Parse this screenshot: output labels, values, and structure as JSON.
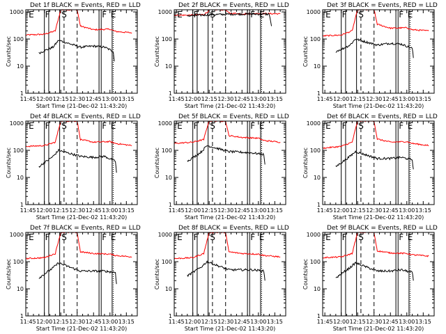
{
  "figure": {
    "common": {
      "xlabel": "Start Time (21-Dec-02 11:43:20)",
      "ylabel": "Counts/sec",
      "title_suffix": " BLACK = Events, RED = LLD",
      "x_tick_labels": [
        "11:45",
        "12:00",
        "12:15",
        "12:30",
        "12:45",
        "13:00",
        "13:15"
      ],
      "y_tick_labels": [
        "1",
        "10",
        "100",
        "1000"
      ],
      "markers": [
        {
          "label": "E",
          "time": "11:45"
        },
        {
          "label": "F",
          "time": "12:00"
        },
        {
          "label": "S",
          "time": "12:15"
        },
        {
          "label": "F",
          "time": "12:52"
        },
        {
          "label": "E",
          "time": "13:00"
        }
      ],
      "colors": {
        "events": "#000000",
        "lld": "#ff0000",
        "axes": "#000000"
      }
    }
  },
  "chart_data": [
    {
      "type": "line",
      "title": "Det 1f BLACK = Events, RED = LLD",
      "title_det": "Det 1f",
      "xlabel": "Start Time (21-Dec-02 11:43:20)",
      "ylabel": "Counts/sec",
      "xlim": [
        "11:43",
        "13:25"
      ],
      "ylim": [
        1,
        1200
      ],
      "yscale": "log",
      "series": [
        {
          "name": "LLD (red)",
          "times": [
            "11:43",
            "12:00",
            "12:10",
            "12:13",
            "12:15",
            "12:30",
            "12:33",
            "12:45",
            "13:00",
            "13:05",
            "13:20"
          ],
          "values": [
            140,
            150,
            200,
            600,
            1200,
            1200,
            300,
            220,
            230,
            190,
            170
          ]
        },
        {
          "name": "Events (black)",
          "times": [
            "11:55",
            "12:02",
            "12:08",
            "12:13",
            "12:33",
            "12:45",
            "12:55",
            "13:03",
            "13:04"
          ],
          "values": [
            30,
            40,
            50,
            90,
            50,
            55,
            50,
            35,
            15
          ]
        }
      ]
    },
    {
      "type": "line",
      "title": "Det 2f BLACK = Events, RED = LLD",
      "title_det": "Det 2f",
      "xlabel": "Start Time (21-Dec-02 11:43:20)",
      "ylabel": "Counts/sec",
      "xlim": [
        "11:43",
        "13:25"
      ],
      "ylim": [
        1,
        1200
      ],
      "yscale": "log",
      "series": [
        {
          "name": "LLD (red)",
          "times": [
            "11:43",
            "12:00",
            "12:10",
            "12:13",
            "12:15",
            "12:30",
            "12:33",
            "12:45",
            "13:00",
            "13:20"
          ],
          "values": [
            750,
            760,
            800,
            950,
            1200,
            1200,
            900,
            850,
            870,
            850
          ]
        },
        {
          "name": "Events (black)",
          "times": [
            "11:55",
            "12:02",
            "12:08",
            "12:13",
            "12:33",
            "12:45",
            "12:55",
            "13:10",
            "13:12"
          ],
          "values": [
            720,
            740,
            760,
            780,
            820,
            830,
            840,
            820,
            300
          ]
        }
      ]
    },
    {
      "type": "line",
      "title": "Det 3f BLACK = Events, RED = LLD",
      "title_det": "Det 3f",
      "xlabel": "Start Time (21-Dec-02 11:43:20)",
      "ylabel": "Counts/sec",
      "xlim": [
        "11:43",
        "13:25"
      ],
      "ylim": [
        1,
        1200
      ],
      "yscale": "log",
      "series": [
        {
          "name": "LLD (red)",
          "times": [
            "11:43",
            "12:00",
            "12:10",
            "12:13",
            "12:15",
            "12:30",
            "12:33",
            "12:45",
            "13:00",
            "13:05",
            "13:20"
          ],
          "values": [
            130,
            140,
            200,
            600,
            1200,
            1200,
            350,
            250,
            260,
            220,
            200
          ]
        },
        {
          "name": "Events (black)",
          "times": [
            "11:55",
            "12:02",
            "12:08",
            "12:13",
            "12:33",
            "12:45",
            "12:55",
            "13:05",
            "13:06"
          ],
          "values": [
            35,
            45,
            60,
            100,
            60,
            70,
            65,
            45,
            20
          ]
        }
      ]
    },
    {
      "type": "line",
      "title": "Det 4f BLACK = Events, RED = LLD",
      "title_det": "Det 4f",
      "xlabel": "Start Time (21-Dec-02 11:43:20)",
      "ylabel": "Counts/sec",
      "xlim": [
        "11:43",
        "13:25"
      ],
      "ylim": [
        1,
        1200
      ],
      "yscale": "log",
      "series": [
        {
          "name": "LLD (red)",
          "times": [
            "11:43",
            "12:00",
            "12:10",
            "12:13",
            "12:15",
            "12:30",
            "12:33",
            "12:45",
            "13:00",
            "13:05",
            "13:20"
          ],
          "values": [
            140,
            150,
            200,
            600,
            1200,
            1200,
            250,
            200,
            210,
            180,
            150
          ]
        },
        {
          "name": "Events (black)",
          "times": [
            "11:55",
            "12:02",
            "12:08",
            "12:13",
            "12:33",
            "12:45",
            "12:55",
            "13:05",
            "13:06"
          ],
          "values": [
            25,
            40,
            60,
            100,
            60,
            55,
            60,
            40,
            15
          ]
        }
      ]
    },
    {
      "type": "line",
      "title": "Det 5f BLACK = Events, RED = LLD",
      "title_det": "Det 5f",
      "xlabel": "Start Time (21-Dec-02 11:43:20)",
      "ylabel": "Counts/sec",
      "xlim": [
        "11:43",
        "13:25"
      ],
      "ylim": [
        1,
        1200
      ],
      "yscale": "log",
      "series": [
        {
          "name": "LLD (red)",
          "times": [
            "11:43",
            "12:00",
            "12:10",
            "12:13",
            "12:15",
            "12:30",
            "12:33",
            "12:45",
            "13:00",
            "13:05",
            "13:20"
          ],
          "values": [
            180,
            200,
            250,
            700,
            1200,
            1200,
            350,
            300,
            280,
            230,
            200
          ]
        },
        {
          "name": "Events (black)",
          "times": [
            "11:55",
            "12:02",
            "12:08",
            "12:13",
            "12:33",
            "12:45",
            "12:55",
            "13:05",
            "13:06"
          ],
          "values": [
            40,
            60,
            90,
            150,
            90,
            85,
            80,
            70,
            30
          ]
        }
      ]
    },
    {
      "type": "line",
      "title": "Det 6f BLACK = Events, RED = LLD",
      "title_det": "Det 6f",
      "xlabel": "Start Time (21-Dec-02 11:43:20)",
      "ylabel": "Counts/sec",
      "xlim": [
        "11:43",
        "13:25"
      ],
      "ylim": [
        1,
        1200
      ],
      "yscale": "log",
      "series": [
        {
          "name": "LLD (red)",
          "times": [
            "11:43",
            "12:00",
            "12:10",
            "12:13",
            "12:15",
            "12:30",
            "12:33",
            "12:45",
            "13:00",
            "13:05",
            "13:20"
          ],
          "values": [
            120,
            140,
            200,
            600,
            1200,
            1200,
            260,
            200,
            210,
            180,
            150
          ]
        },
        {
          "name": "Events (black)",
          "times": [
            "11:55",
            "12:02",
            "12:08",
            "12:13",
            "12:33",
            "12:45",
            "12:55",
            "13:05",
            "13:06"
          ],
          "values": [
            25,
            40,
            60,
            90,
            50,
            50,
            55,
            45,
            20
          ]
        }
      ]
    },
    {
      "type": "line",
      "title": "Det 7f BLACK = Events, RED = LLD",
      "title_det": "Det 7f",
      "xlabel": "Start Time (21-Dec-02 11:43:20)",
      "ylabel": "Counts/sec",
      "xlim": [
        "11:43",
        "13:25"
      ],
      "ylim": [
        1,
        1200
      ],
      "yscale": "log",
      "series": [
        {
          "name": "LLD (red)",
          "times": [
            "11:43",
            "12:00",
            "12:10",
            "12:13",
            "12:15",
            "12:30",
            "12:33",
            "12:45",
            "13:00",
            "13:05",
            "13:20"
          ],
          "values": [
            130,
            140,
            200,
            600,
            1200,
            1200,
            230,
            200,
            190,
            170,
            150
          ]
        },
        {
          "name": "Events (black)",
          "times": [
            "11:55",
            "12:02",
            "12:08",
            "12:13",
            "12:33",
            "12:45",
            "12:55",
            "13:05",
            "13:06"
          ],
          "values": [
            25,
            40,
            60,
            90,
            45,
            45,
            45,
            40,
            15
          ]
        }
      ]
    },
    {
      "type": "line",
      "title": "Det 8f BLACK = Events, RED = LLD",
      "title_det": "Det 8f",
      "xlabel": "Start Time (21-Dec-02 11:43:20)",
      "ylabel": "Counts/sec",
      "xlim": [
        "11:43",
        "13:25"
      ],
      "ylim": [
        1,
        1200
      ],
      "yscale": "log",
      "series": [
        {
          "name": "LLD (red)",
          "times": [
            "11:43",
            "12:00",
            "12:10",
            "12:13",
            "12:15",
            "12:30",
            "12:33",
            "12:45",
            "13:00",
            "13:05",
            "13:20"
          ],
          "values": [
            130,
            140,
            200,
            600,
            1200,
            1200,
            230,
            200,
            190,
            170,
            150
          ]
        },
        {
          "name": "Events (black)",
          "times": [
            "11:55",
            "12:02",
            "12:08",
            "12:13",
            "12:33",
            "12:45",
            "12:55",
            "13:05",
            "13:06"
          ],
          "values": [
            30,
            45,
            65,
            100,
            50,
            50,
            50,
            45,
            20
          ]
        }
      ]
    },
    {
      "type": "line",
      "title": "Det 9f BLACK = Events, RED = LLD",
      "title_det": "Det 9f",
      "xlabel": "Start Time (21-Dec-02 11:43:20)",
      "ylabel": "Counts/sec",
      "xlim": [
        "11:43",
        "13:25"
      ],
      "ylim": [
        1,
        1200
      ],
      "yscale": "log",
      "series": [
        {
          "name": "LLD (red)",
          "times": [
            "11:43",
            "12:00",
            "12:10",
            "12:13",
            "12:15",
            "12:30",
            "12:33",
            "12:45",
            "13:00",
            "13:05",
            "13:20"
          ],
          "values": [
            140,
            150,
            200,
            600,
            1200,
            1200,
            250,
            210,
            200,
            180,
            160
          ]
        },
        {
          "name": "Events (black)",
          "times": [
            "11:55",
            "12:02",
            "12:08",
            "12:13",
            "12:33",
            "12:45",
            "12:55",
            "13:05",
            "13:06"
          ],
          "values": [
            25,
            40,
            60,
            90,
            45,
            45,
            50,
            40,
            20
          ]
        }
      ]
    }
  ]
}
